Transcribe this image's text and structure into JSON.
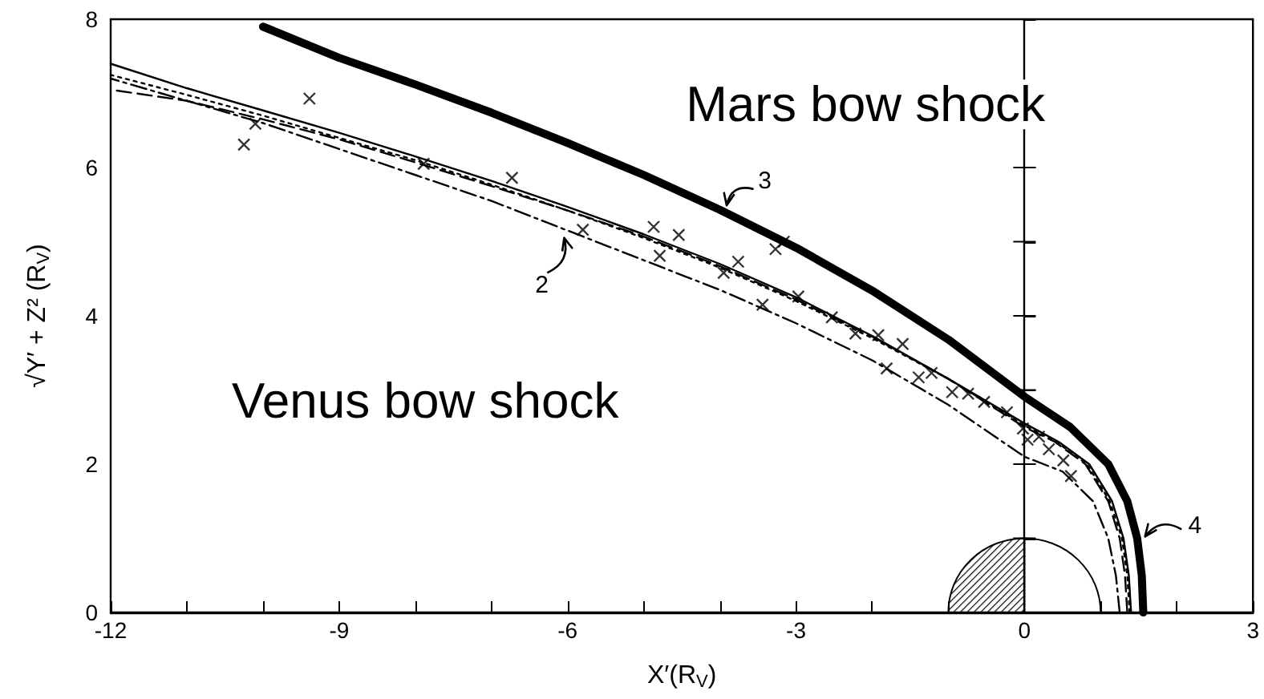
{
  "chart_data": {
    "type": "line",
    "xlabel": "X′(R$_{V}$)",
    "ylabel": "√Y′ + Z² (R$_{V}$)",
    "xlim": [
      -12,
      3
    ],
    "ylim": [
      0,
      8
    ],
    "xticks": [
      -12,
      {
        "value": -11,
        "label": null
      },
      {
        "value": -10,
        "label": null
      },
      -9,
      {
        "value": -8,
        "label": null
      },
      {
        "value": -7,
        "label": null
      },
      -6,
      {
        "value": -5,
        "label": null
      },
      {
        "value": -4,
        "label": null
      },
      -3,
      {
        "value": -2,
        "label": null
      },
      {
        "value": -1,
        "label": null
      },
      0,
      {
        "value": 1,
        "label": null
      },
      {
        "value": 2,
        "label": null
      },
      3
    ],
    "yticks": [
      0,
      {
        "value": 1,
        "label": null
      },
      2,
      {
        "value": 3,
        "label": null
      },
      4,
      {
        "value": 5,
        "label": null
      },
      6,
      {
        "value": 7,
        "label": null
      },
      8
    ],
    "grid": false,
    "marker": "none",
    "ref_lines": [
      {
        "axis": "x",
        "value": 0,
        "label": null,
        "color": "#000000"
      }
    ],
    "annotations": [
      "Mars bow shock",
      "Venus bow shock",
      "2",
      "3",
      "4"
    ],
    "series": [
      {
        "color": "#000000",
        "line_style": "solid",
        "x": [
          1.56,
          1.54,
          1.48,
          1.35,
          1.1,
          0.6,
          0,
          -1,
          -2,
          -3,
          -4,
          -5,
          -6,
          -7,
          -8,
          -9,
          -10
        ],
        "values": [
          0,
          0.5,
          1,
          1.5,
          2,
          2.5,
          2.91,
          3.68,
          4.34,
          4.92,
          5.43,
          5.9,
          6.33,
          6.74,
          7.12,
          7.48,
          7.9
        ]
      },
      {
        "color": "#000000",
        "line_style": "solid",
        "x": [
          1.4,
          1.37,
          1.3,
          1.15,
          0.85,
          0.45,
          0,
          -1,
          -2,
          -3,
          -4,
          -5,
          -6,
          -7,
          -8,
          -9,
          -10,
          -11,
          -12
        ],
        "values": [
          0,
          0.5,
          1,
          1.5,
          2,
          2.3,
          2.55,
          3.15,
          3.73,
          4.25,
          4.7,
          5.1,
          5.47,
          5.82,
          6.15,
          6.47,
          6.77,
          7.07,
          7.4
        ]
      },
      {
        "color": "#000000",
        "line_style": "dashdot",
        "x": [
          1.25,
          1.2,
          1.1,
          0.9,
          0.5,
          0,
          -1,
          -2,
          -3,
          -4,
          -5,
          -6,
          -7,
          -8,
          -9,
          -10,
          -11,
          -12
        ],
        "values": [
          0,
          0.5,
          1,
          1.5,
          1.9,
          2.1,
          2.8,
          3.4,
          3.9,
          4.35,
          4.75,
          5.15,
          5.55,
          5.9,
          6.25,
          6.6,
          6.9,
          7.2
        ]
      },
      {
        "color": "#000000",
        "line_style": "dashed",
        "x": [
          1.35,
          1.32,
          1.25,
          1.1,
          0.8,
          0.4,
          0,
          -1,
          -2,
          -3,
          -4,
          -5,
          -6,
          -7,
          -8,
          -9,
          -10,
          -11,
          -12
        ],
        "values": [
          0,
          0.5,
          1,
          1.5,
          2,
          2.3,
          2.5,
          3.15,
          3.72,
          4.22,
          4.67,
          5.07,
          5.42,
          5.75,
          6.07,
          6.38,
          6.65,
          6.9,
          7.05
        ]
      },
      {
        "color": "#000000",
        "line_style": "dotted",
        "x": [
          1.38,
          1.35,
          1.28,
          1.12,
          0.82,
          0.42,
          0,
          -1,
          -2,
          -3,
          -4,
          -5,
          -6,
          -7,
          -8,
          -9,
          -10,
          -11,
          -12
        ],
        "values": [
          0,
          0.5,
          1,
          1.5,
          2,
          2.3,
          2.52,
          3.15,
          3.7,
          4.2,
          4.65,
          5.05,
          5.42,
          5.77,
          6.1,
          6.4,
          6.7,
          6.98,
          7.25
        ]
      },
      {
        "type": "scatter",
        "marker": "cross",
        "color": "#000000",
        "x": [
          -9.39,
          -10.25,
          -10.1,
          -7.89,
          -6.73,
          -5.8,
          -4.87,
          -4.54,
          -4.79,
          -3.95,
          -3.76,
          -3.44,
          -3.16,
          -3.27,
          -2.97,
          -2.53,
          -2.22,
          -1.92,
          -1.6,
          -1.81,
          -1.39,
          -1.22,
          -0.95,
          -0.74,
          -0.53,
          -0.23,
          -0.02,
          0.04,
          0.19,
          0.32,
          0.51,
          0.61
        ],
        "values": [
          6.93,
          6.31,
          6.59,
          6.05,
          5.86,
          5.16,
          5.2,
          5.09,
          4.81,
          4.58,
          4.73,
          4.15,
          5.0,
          4.9,
          4.26,
          3.98,
          3.76,
          3.74,
          3.62,
          3.29,
          3.17,
          3.23,
          2.97,
          2.95,
          2.84,
          2.7,
          2.48,
          2.33,
          2.37,
          2.2,
          2.05,
          1.84
        ]
      }
    ]
  }
}
